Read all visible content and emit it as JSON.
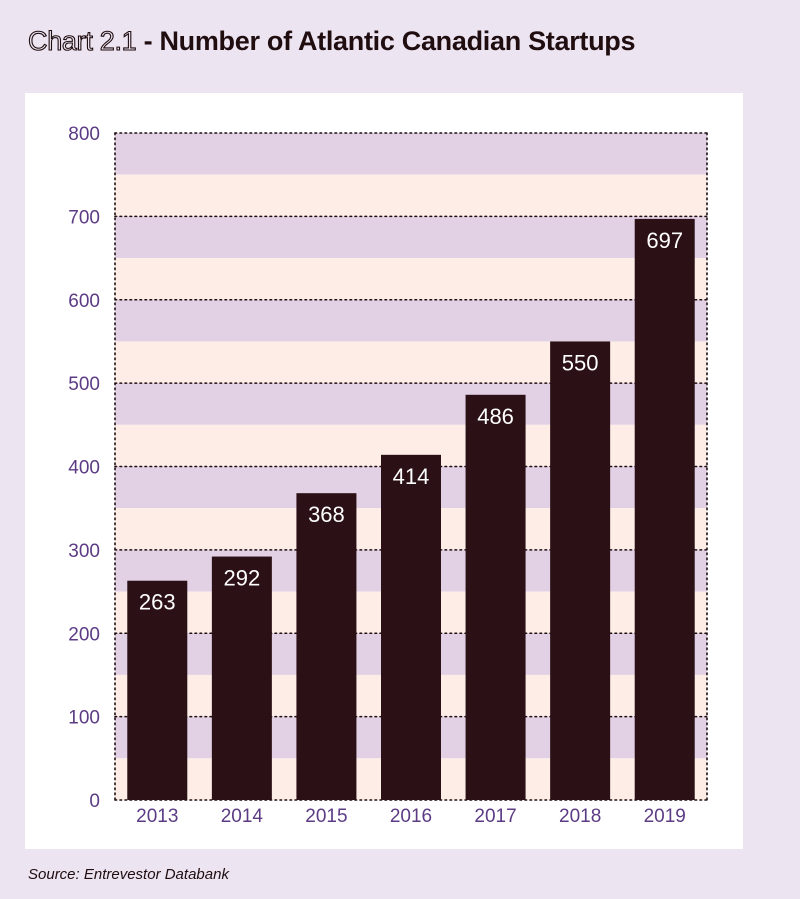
{
  "title": {
    "prefix": "Chart 2.1",
    "main": "- Number of Atlantic Canadian Startups"
  },
  "source": "Source: Entrevestor Databank",
  "colors": {
    "background": "#ece4f1",
    "bar": "#2b1015",
    "band_purple": "#e2d1e5",
    "band_peach": "#fdede6",
    "axis_text": "#5c3b84",
    "bar_label": "#ffffff"
  },
  "chart_data": {
    "type": "bar",
    "categories": [
      "2013",
      "2014",
      "2015",
      "2016",
      "2017",
      "2018",
      "2019"
    ],
    "values": [
      263,
      292,
      368,
      414,
      486,
      550,
      697
    ],
    "ylim": [
      0,
      800
    ],
    "yticks": [
      "0",
      "100",
      "200",
      "300",
      "400",
      "500",
      "600",
      "700",
      "800"
    ],
    "data_labels": [
      "263",
      "292",
      "368",
      "414",
      "486",
      "550",
      "697"
    ],
    "grid": "dotted frame with alternating horizontal bands",
    "legend": "none"
  }
}
